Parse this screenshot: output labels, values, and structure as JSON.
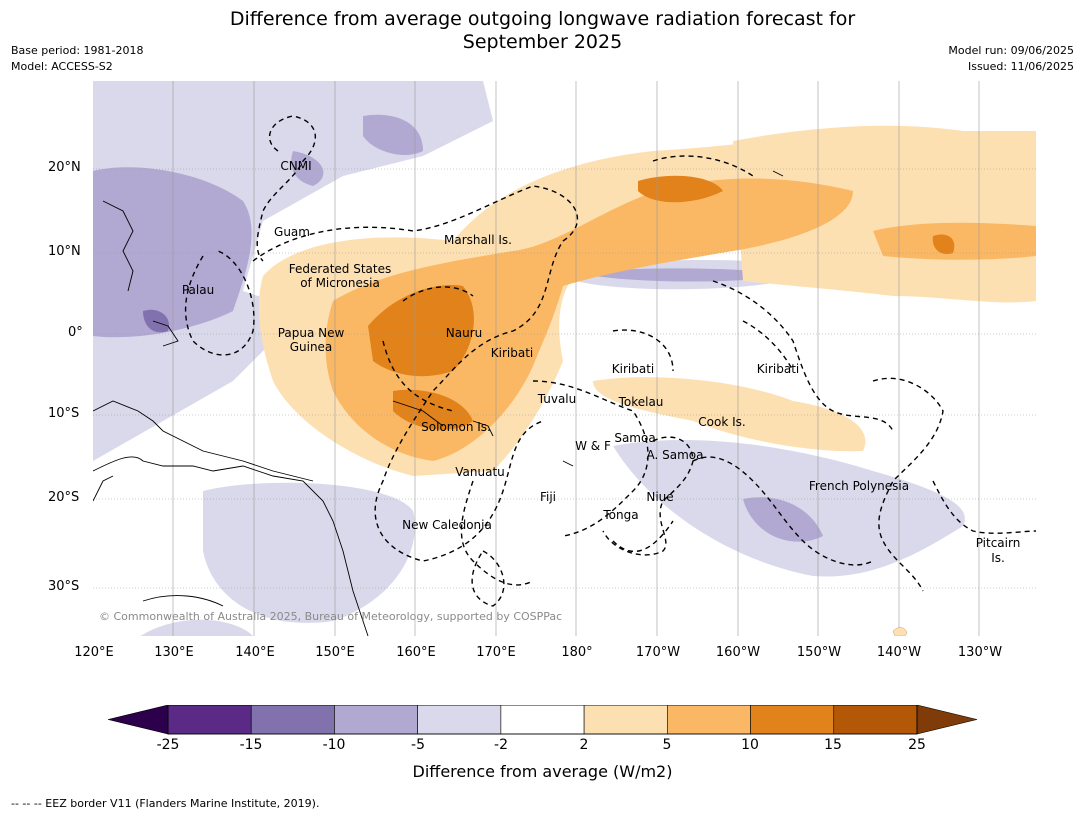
{
  "header": {
    "title_line1": "Difference from average outgoing longwave radiation forecast for",
    "title_line2": "September 2025",
    "base_period": "Base period: 1981-2018",
    "model": "Model: ACCESS-S2",
    "model_run": "Model run: 09/06/2025",
    "issued": "Issued: 11/06/2025"
  },
  "axes": {
    "lat_labels": [
      "20°N",
      "10°N",
      "0°",
      "10°S",
      "20°S",
      "30°S"
    ],
    "lon_labels": [
      "120°E",
      "130°E",
      "140°E",
      "150°E",
      "160°E",
      "170°E",
      "180°",
      "170°W",
      "160°W",
      "150°W",
      "140°W",
      "130°W"
    ]
  },
  "places": [
    "CNMI",
    "Guam",
    "Marshall Is.",
    "Federated States",
    "of Micronesia",
    "Palau",
    "Papua New",
    "Guinea",
    "Nauru",
    "Kiribati",
    "Kiribati",
    "Kiribati",
    "Tuvalu",
    "Tokelau",
    "Solomon Is.",
    "Samoa",
    "W & F",
    "A. Samoa",
    "Cook Is.",
    "Vanuatu",
    "Fiji",
    "Niue",
    "Tonga",
    "French Polynesia",
    "New Caledonia",
    "Pitcairn",
    "Is."
  ],
  "copyright": "© Commonwealth of Australia 2025, Bureau of Meteorology, supported by COSPPac",
  "colorbar": {
    "labels": [
      "-25",
      "-15",
      "-10",
      "-5",
      "-2",
      "2",
      "5",
      "10",
      "15",
      "25"
    ],
    "colors": [
      "#5b2a86",
      "#8172ae",
      "#b1a9d2",
      "#d9d9eb",
      "#ffffff",
      "#fde0b2",
      "#fbb864",
      "#e1821b",
      "#b35806"
    ],
    "under_color": "#2d004b",
    "over_color": "#7f3b08",
    "title": "Difference from average (W/m2)"
  },
  "footnote": "--  --  -- EEZ border V11 (Flanders Marine Institute, 2019)."
}
